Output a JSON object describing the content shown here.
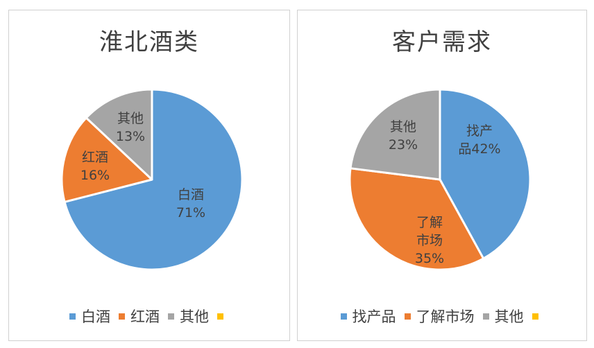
{
  "chart_data": [
    {
      "type": "pie",
      "title": "淮北酒类",
      "slices": [
        {
          "label": "白酒",
          "value": 71,
          "display": "71%",
          "color": "#5b9bd5"
        },
        {
          "label": "红酒",
          "value": 16,
          "display": "16%",
          "color": "#ed7d31"
        },
        {
          "label": "其他",
          "value": 13,
          "display": "13%",
          "color": "#a5a5a5"
        }
      ],
      "legend": [
        {
          "label": "白酒",
          "color": "#5b9bd5"
        },
        {
          "label": "红酒",
          "color": "#ed7d31"
        },
        {
          "label": "其他",
          "color": "#a5a5a5"
        },
        {
          "label": "",
          "color": "#ffc000"
        }
      ]
    },
    {
      "type": "pie",
      "title": "客户需求",
      "slices": [
        {
          "label": "找产品",
          "value": 42,
          "display": "42%",
          "color": "#5b9bd5"
        },
        {
          "label": "了解市场",
          "value": 35,
          "display": "35%",
          "color": "#ed7d31"
        },
        {
          "label": "其他",
          "value": 23,
          "display": "23%",
          "color": "#a5a5a5"
        }
      ],
      "legend": [
        {
          "label": "找产品",
          "color": "#5b9bd5"
        },
        {
          "label": "了解市场",
          "color": "#ed7d31"
        },
        {
          "label": "其他",
          "color": "#a5a5a5"
        },
        {
          "label": "",
          "color": "#ffc000"
        }
      ]
    }
  ]
}
